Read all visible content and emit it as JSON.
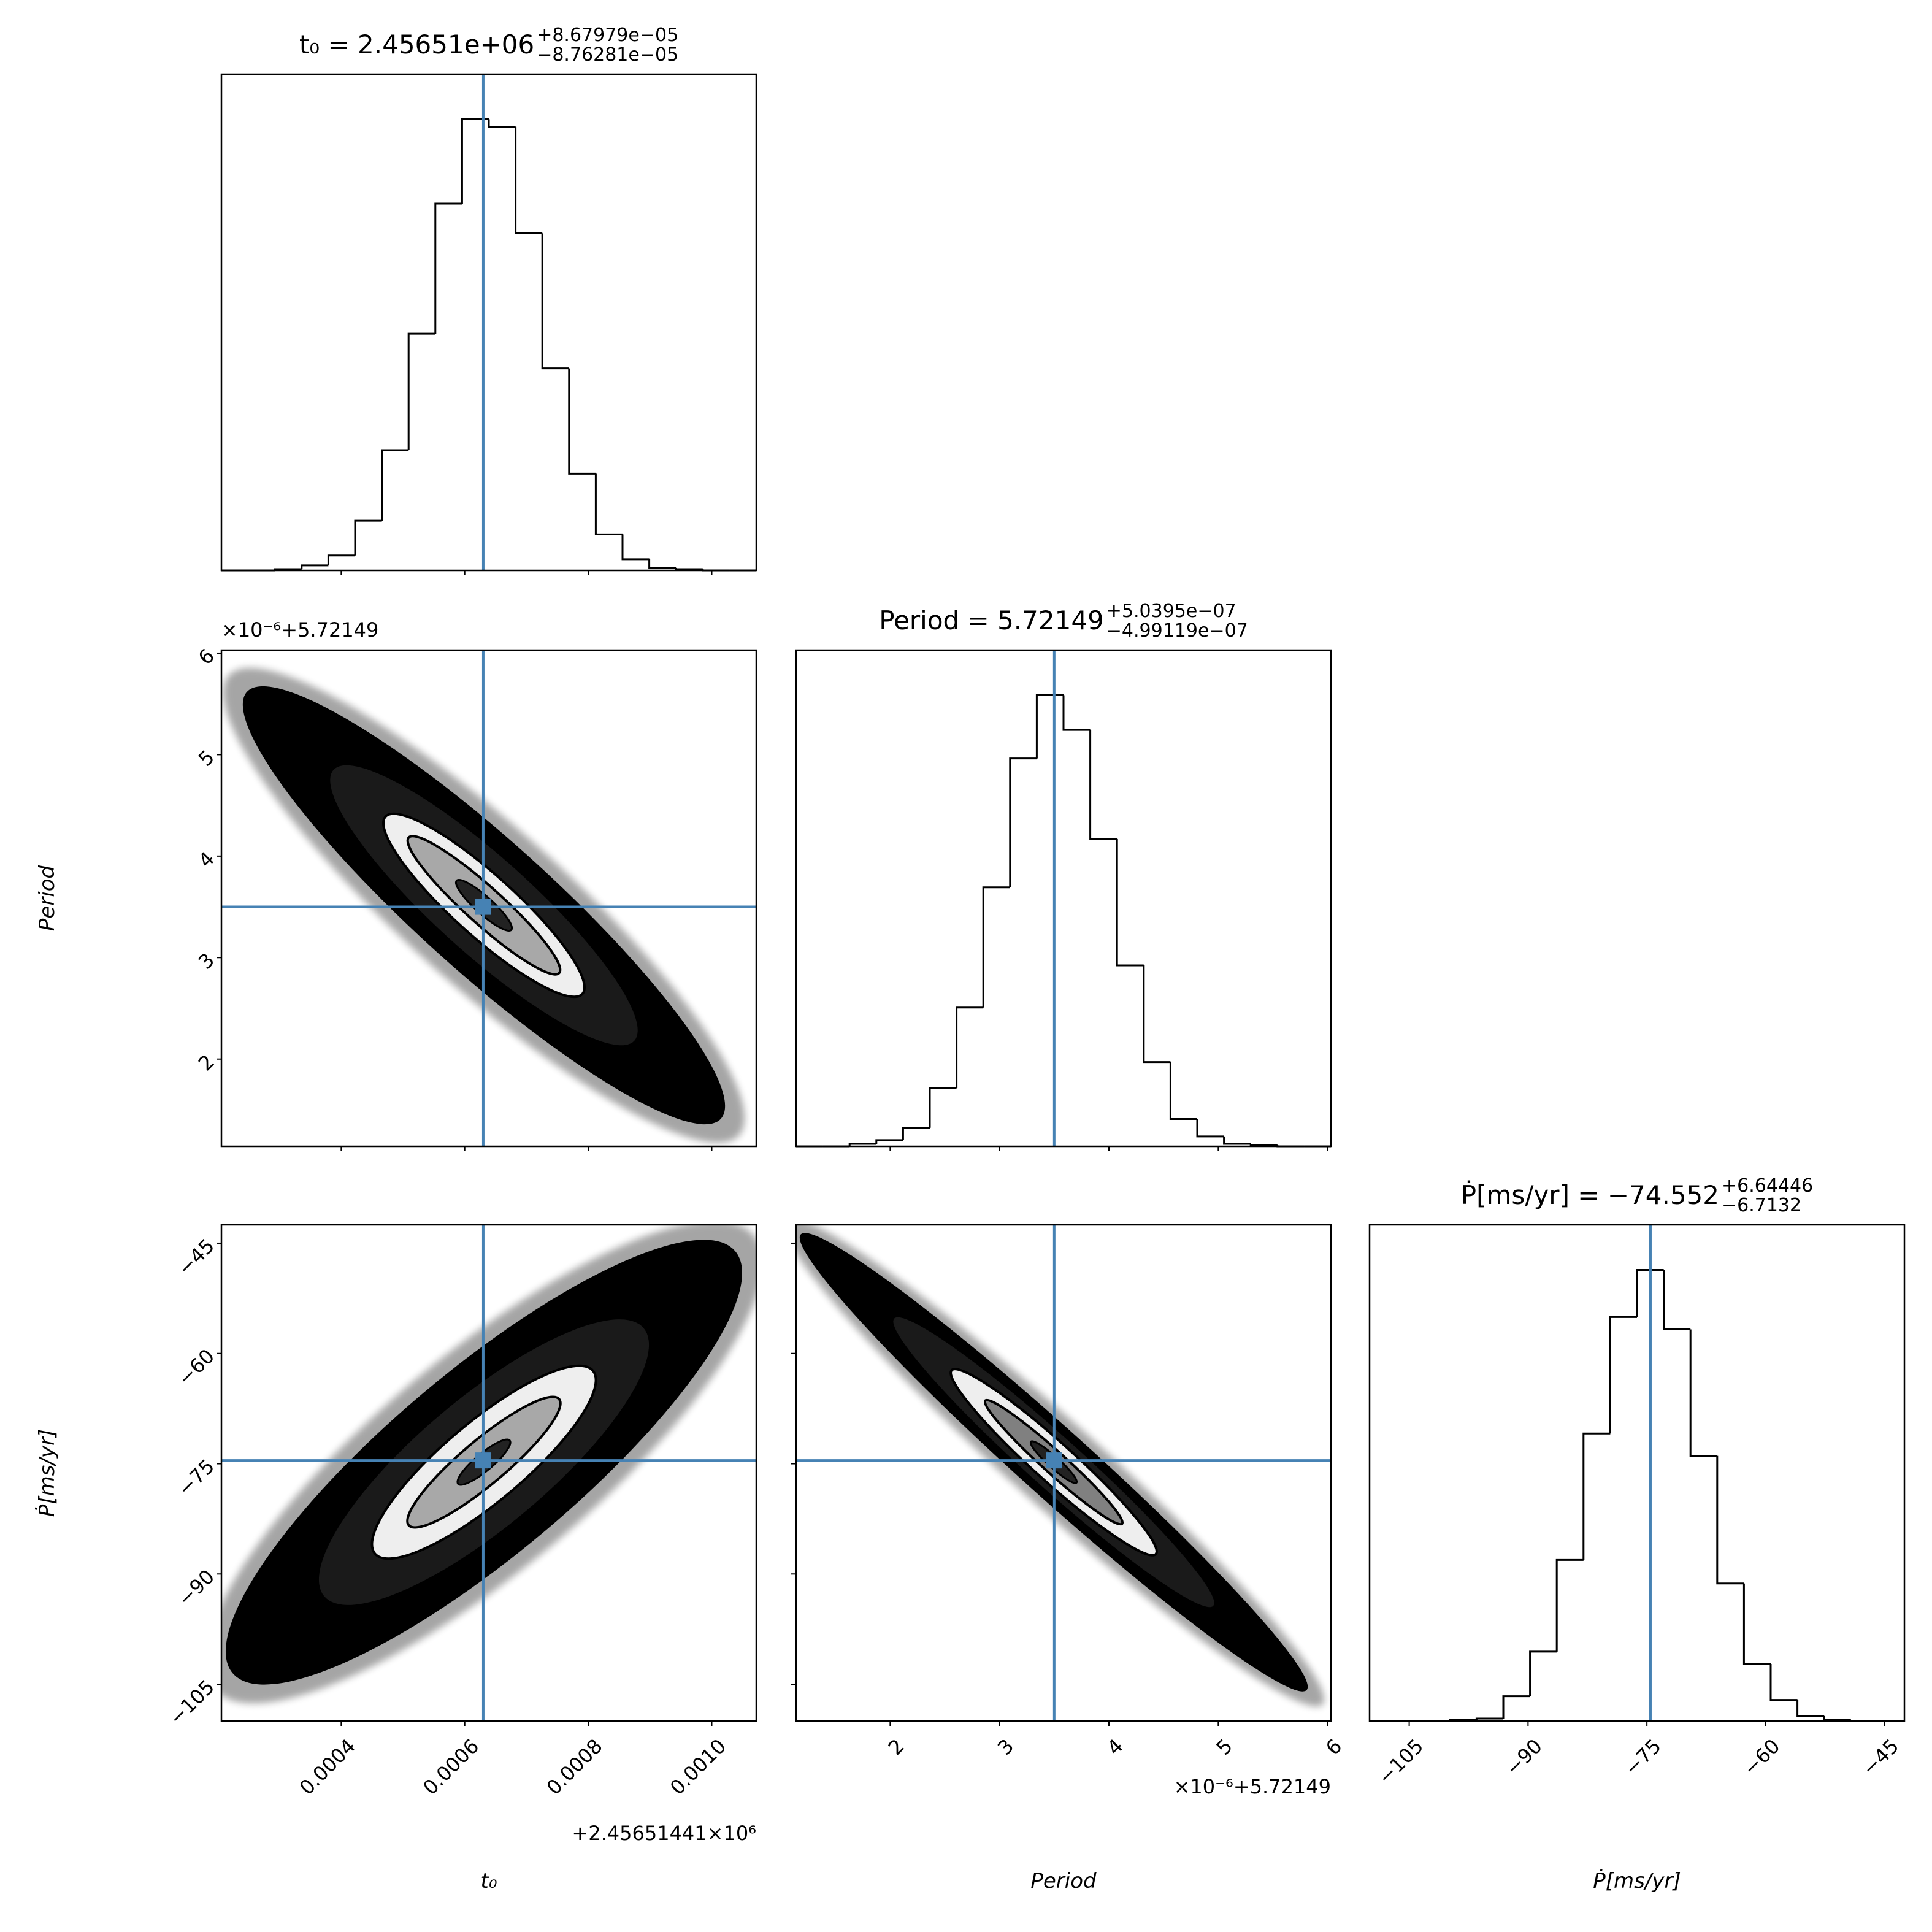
{
  "chart_data": {
    "type": "corner",
    "truth_color": "#4682b4",
    "hist_color": "#000000",
    "axes": [
      {
        "label": "t₀",
        "title": "t₀ = 2.45651e+06",
        "title_upper": "+8.67979e−05",
        "title_lower": "−8.76281e−05",
        "offset_text": "+2.45651441×10⁶",
        "lim": [
          0.000206,
          0.001072
        ],
        "ticks": [
          0.0004,
          0.0006,
          0.0008,
          {
            "value": 0.001,
            "label": "0.0010"
          }
        ],
        "truth": 0.00063,
        "bins": [
          0.000206,
          0.0002493,
          0.0002926,
          0.0003359,
          0.0003792,
          0.0004225,
          0.0004658,
          0.0005091,
          0.0005524,
          0.0005957,
          0.000639,
          0.0006823,
          0.0007256,
          0.0007689,
          0.0008122,
          0.0008555,
          0.0008988,
          0.0009421,
          0.0009854,
          0.0010287,
          0.001072
        ],
        "counts": [
          0,
          0,
          1,
          4,
          12,
          40,
          97,
          191,
          296,
          364,
          358,
          272,
          163,
          78,
          29,
          9,
          2,
          1,
          0,
          0
        ]
      },
      {
        "label": "Period",
        "title": "Period = 5.72149",
        "title_upper": "+5.0395e−07",
        "title_lower": "−4.99119e−07",
        "offset_text": "×10⁻⁶+5.72149",
        "lim": [
          1.14,
          6.03
        ],
        "ticks": [
          2,
          3,
          4,
          5,
          6
        ],
        "truth": 3.5,
        "bins": [
          1.14,
          1.3845,
          1.629,
          1.8735,
          2.118,
          2.3625,
          2.607,
          2.8515,
          3.096,
          3.3405,
          3.585,
          3.8295,
          4.074,
          4.3185,
          4.563,
          4.8075,
          5.052,
          5.2965,
          5.541,
          5.7855,
          6.03
        ],
        "counts": [
          0,
          0,
          2,
          5,
          15,
          47,
          112,
          209,
          313,
          364,
          336,
          248,
          146,
          68,
          22,
          8,
          2,
          1,
          0,
          0
        ]
      },
      {
        "label": "Ṗ[ms/yr]",
        "title": "Ṗ[ms/yr] = −74.552",
        "title_upper": "+6.64446",
        "title_lower": "−6.7132",
        "lim": [
          -110,
          -42.5
        ],
        "ticks": [
          {
            "value": -105,
            "label": "−105"
          },
          {
            "value": -90,
            "label": "−90"
          },
          {
            "value": -75,
            "label": "−75"
          },
          {
            "value": -60,
            "label": "−60"
          },
          {
            "value": -45,
            "label": "−45"
          }
        ],
        "truth": -74.55,
        "bins": [
          -110,
          -106.625,
          -103.25,
          -99.875,
          -96.5,
          -93.125,
          -89.75,
          -86.375,
          -83,
          -79.625,
          -76.25,
          -72.875,
          -69.5,
          -66.125,
          -62.75,
          -59.375,
          -56,
          -52.625,
          -49.25,
          -45.875,
          -42.5
        ],
        "counts": [
          0,
          0,
          0,
          1,
          2,
          20,
          56,
          130,
          232,
          326,
          364,
          316,
          214,
          111,
          46,
          17,
          4,
          1,
          0,
          0
        ]
      }
    ]
  }
}
